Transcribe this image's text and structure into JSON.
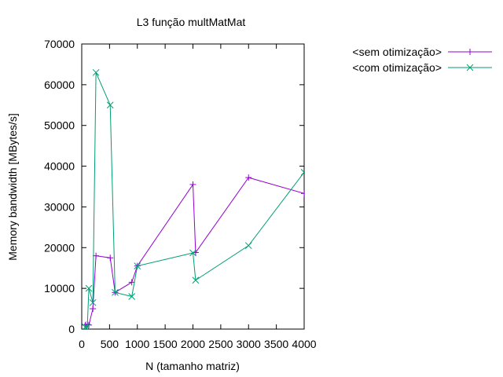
{
  "chart_data": {
    "type": "line",
    "title": "L3 função multMatMat",
    "xlabel": "N (tamanho matriz)",
    "ylabel": "Memory bandwidth [MBytes/s]",
    "xlim": [
      0,
      4000
    ],
    "ylim": [
      0,
      70000
    ],
    "xticks": [
      0,
      500,
      1000,
      1500,
      2000,
      2500,
      3000,
      3500,
      4000
    ],
    "yticks": [
      0,
      10000,
      20000,
      30000,
      40000,
      50000,
      60000,
      70000
    ],
    "grid": false,
    "legend_position": "outside-top-right",
    "series": [
      {
        "name": "<sem otimização>",
        "color": "#9400d3",
        "marker": "plus",
        "x": [
          64,
          100,
          128,
          200,
          256,
          512,
          600,
          900,
          1000,
          2000,
          2048,
          3000,
          4000
        ],
        "y": [
          1000,
          1200,
          1000,
          5000,
          18000,
          17500,
          9000,
          11500,
          15500,
          35500,
          18800,
          37200,
          33300
        ]
      },
      {
        "name": "<com otimização>",
        "color": "#009e73",
        "marker": "cross",
        "x": [
          64,
          100,
          128,
          200,
          256,
          512,
          600,
          900,
          1000,
          2000,
          2048,
          3000,
          4000
        ],
        "y": [
          500,
          500,
          10000,
          6500,
          63000,
          55000,
          9000,
          8000,
          15500,
          18700,
          12000,
          20500,
          38500
        ]
      }
    ]
  }
}
